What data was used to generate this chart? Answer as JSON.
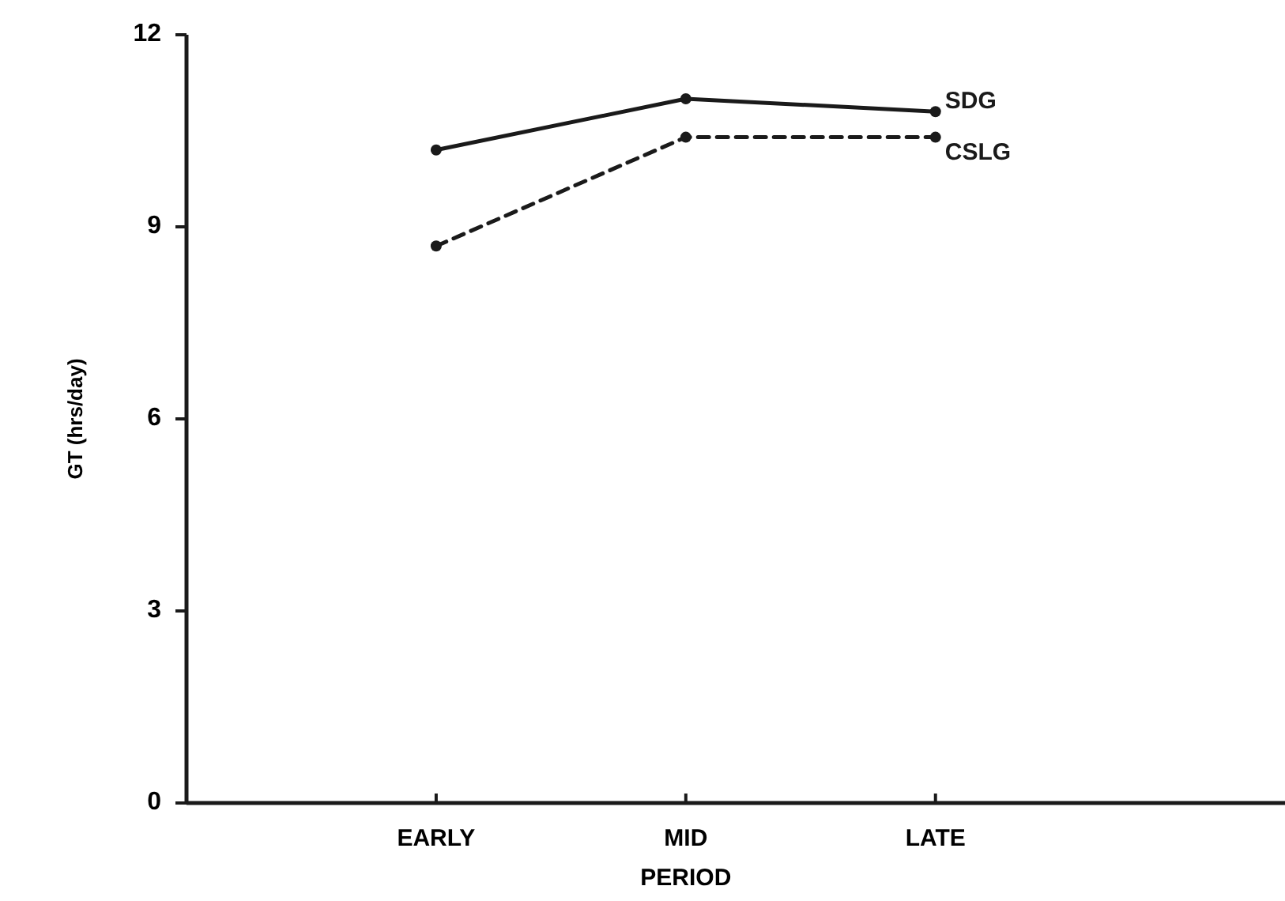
{
  "chart_data": {
    "type": "line",
    "xlabel": "PERIOD",
    "ylabel": "GT (hrs/day)",
    "categories": [
      "EARLY",
      "MID",
      "LATE"
    ],
    "ylim": [
      0,
      12
    ],
    "yticks": [
      0,
      3,
      6,
      9,
      12
    ],
    "marker": "circle",
    "grid": false,
    "legend": false,
    "series": [
      {
        "name": "SDG",
        "color": "#1a1a1a",
        "line_style": "solid",
        "values": [
          10.2,
          11.0,
          10.8
        ]
      },
      {
        "name": "CSLG",
        "color": "#1a1a1a",
        "line_style": "dashed",
        "values": [
          8.7,
          10.4,
          10.4
        ]
      }
    ]
  }
}
